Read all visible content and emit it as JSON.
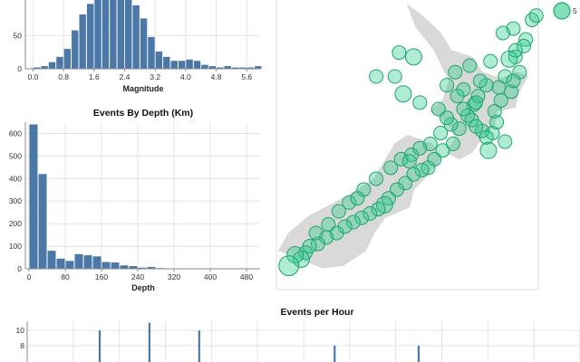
{
  "colors": {
    "bar": "#4c78a8",
    "bubble_fill": "#2fca8c",
    "bubble_stroke": "#1aa56d",
    "land": "#d9d9d9",
    "grid": "#e4e4e4"
  },
  "legend": {
    "label": "5"
  },
  "chart_data": [
    {
      "id": "magnitude",
      "type": "bar",
      "title": "",
      "xlabel": "Magnitude",
      "ylabel": "",
      "bin_width": 0.2,
      "bins_start": [
        0.0,
        0.2,
        0.4,
        0.6,
        0.8,
        1.0,
        1.2,
        1.4,
        1.6,
        1.8,
        2.0,
        2.2,
        2.4,
        2.6,
        2.8,
        3.0,
        3.2,
        3.4,
        3.6,
        3.8,
        4.0,
        4.2,
        4.4,
        4.6,
        4.8,
        5.0,
        5.2,
        5.4,
        5.6,
        5.8
      ],
      "values": [
        2,
        4,
        10,
        18,
        30,
        58,
        82,
        98,
        105,
        108,
        110,
        108,
        104,
        96,
        76,
        48,
        26,
        18,
        12,
        12,
        14,
        12,
        6,
        4,
        2,
        4,
        2,
        2,
        2,
        4
      ],
      "xlim": [
        -0.2,
        5.95
      ],
      "ylim": [
        0,
        108
      ],
      "x_ticks": [
        "0.0",
        "0.8",
        "1.6",
        "2.4",
        "3.2",
        "4.0",
        "4.8",
        "5.6"
      ],
      "y_ticks": [
        "0",
        "50"
      ]
    },
    {
      "id": "depth",
      "type": "bar",
      "title": "Events By Depth (Km)",
      "xlabel": "Depth",
      "ylabel": "",
      "bin_width": 20,
      "bins_start": [
        0,
        20,
        40,
        60,
        80,
        100,
        120,
        140,
        160,
        180,
        200,
        220,
        240,
        260,
        280,
        300,
        320,
        340,
        360,
        380,
        400,
        420,
        440,
        460,
        480
      ],
      "values": [
        640,
        420,
        80,
        45,
        35,
        65,
        60,
        55,
        30,
        28,
        15,
        12,
        5,
        8,
        3,
        2,
        1,
        1,
        1,
        2,
        1,
        2,
        1,
        1,
        1
      ],
      "xlim": [
        -8,
        510
      ],
      "ylim": [
        0,
        650
      ],
      "x_ticks": [
        "0",
        "80",
        "160",
        "240",
        "320",
        "400",
        "480"
      ],
      "y_ticks": [
        "0",
        "100",
        "200",
        "300",
        "400",
        "500",
        "600"
      ]
    },
    {
      "id": "hourly",
      "type": "bar",
      "title": "Events per Hour",
      "xlabel": "",
      "ylabel": "",
      "y_ticks": [
        "8",
        "10"
      ],
      "ylim": [
        5.6,
        11.2
      ],
      "bars": [
        {
          "pos": 0.131,
          "value": 10
        },
        {
          "pos": 0.221,
          "value": 11
        },
        {
          "pos": 0.311,
          "value": 10
        },
        {
          "pos": 0.556,
          "value": 8
        },
        {
          "pos": 0.708,
          "value": 8
        }
      ]
    },
    {
      "id": "map",
      "type": "scatter",
      "title": "",
      "xlabel": "",
      "ylabel": "",
      "xlim": [
        166.4,
        179.0
      ],
      "ylim": [
        -47.6,
        -34.2
      ],
      "x": [
        171.2,
        172.3,
        173.0,
        172.1,
        172.5,
        173.3,
        174.6,
        175.0,
        175.4,
        175.9,
        175.7,
        176.1,
        176.5,
        176.9,
        177.2,
        177.4,
        177.7,
        177.9,
        178.1,
        178.4,
        178.7,
        178.9,
        177.8,
        177.3,
        176.7,
        176.2,
        175.6,
        175.2,
        174.9,
        174.4,
        174.0,
        173.7,
        173.4,
        173.0,
        172.6,
        172.2,
        171.8,
        171.6,
        171.3,
        170.9,
        170.5,
        170.1,
        169.7,
        169.3,
        168.8,
        168.4,
        168.0,
        167.8,
        167.6,
        167.3,
        167.0,
        175.4,
        175.8,
        176.3,
        176.8,
        177.4,
        177.0,
        176.5,
        176.0,
        174.8,
        174.3,
        173.8,
        172.9,
        172.4,
        171.9,
        171.2,
        170.6,
        169.9,
        169.4,
        168.9,
        178.3,
        177.9,
        177.6,
        175.1,
        176.6,
        177.1,
        176.0,
        177.8,
        174.6,
        174.2,
        172.8,
        173.3,
        170.3,
        168.3
      ],
      "y": [
        -37.8,
        -36.7,
        -36.9,
        -37.8,
        -38.6,
        -39.0,
        -38.2,
        -37.6,
        -38.4,
        -39.1,
        -37.3,
        -38.7,
        -38.2,
        -39.4,
        -38.9,
        -37.8,
        -38.5,
        -36.9,
        -37.6,
        -36.1,
        -35.2,
        -35.0,
        -35.6,
        -35.8,
        -37.1,
        -38.0,
        -39.6,
        -40.2,
        -40.9,
        -41.2,
        -41.6,
        -42.0,
        -42.1,
        -42.3,
        -42.7,
        -43.0,
        -43.4,
        -43.7,
        -43.9,
        -44.1,
        -44.3,
        -44.5,
        -44.7,
        -45.0,
        -45.2,
        -45.5,
        -45.6,
        -45.9,
        -46.2,
        -46.0,
        -46.5,
        -39.3,
        -39.8,
        -40.3,
        -40.4,
        -40.8,
        -39.9,
        -40.6,
        -40.1,
        -40.0,
        -40.4,
        -40.9,
        -41.4,
        -41.6,
        -42.0,
        -42.5,
        -43.0,
        -43.6,
        -44.0,
        -44.6,
        -36.4,
        -36.6,
        -37.0,
        -38.7,
        -41.2,
        -38.3,
        -39.0,
        -38.0,
        -39.7,
        -39.3,
        -41.7,
        -41.1,
        -43.4,
        -45.0
      ],
      "size_levels": [
        1,
        1,
        2,
        1,
        2,
        1,
        1,
        1,
        1,
        1,
        1,
        1,
        1,
        1,
        1,
        1,
        1,
        1,
        1,
        1,
        1,
        1,
        1,
        1,
        1,
        1,
        1,
        1,
        1,
        1,
        1,
        1,
        1,
        1,
        1,
        1,
        1,
        2,
        1,
        1,
        1,
        1,
        1,
        1,
        1,
        1,
        1,
        1,
        2,
        2,
        3,
        1,
        1,
        1,
        1,
        1,
        1,
        1,
        1,
        1,
        1,
        1,
        1,
        1,
        1,
        1,
        1,
        1,
        1,
        1,
        1,
        1,
        2,
        1,
        2,
        1,
        1,
        1,
        1,
        1,
        1,
        1,
        1,
        1
      ]
    }
  ]
}
